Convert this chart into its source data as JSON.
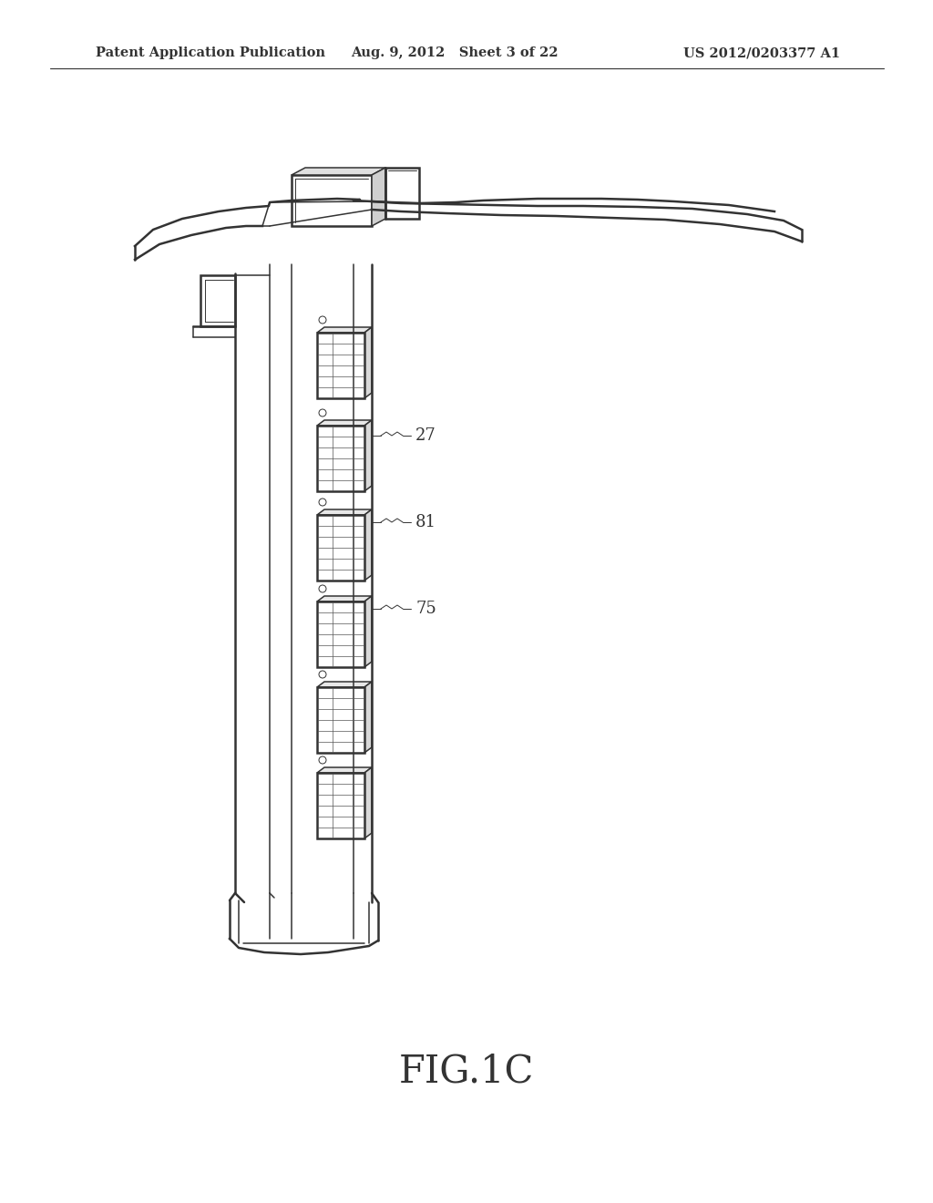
{
  "patent_header_left": "Patent Application Publication",
  "patent_header_mid": "Aug. 9, 2012   Sheet 3 of 22",
  "patent_header_right": "US 2012/0203377 A1",
  "bg_color": "#ffffff",
  "line_color": "#333333",
  "label_27": "27",
  "label_81": "81",
  "label_75": "75",
  "fig_label": "FIG.1C",
  "title_fontsize": 30,
  "header_fontsize": 11
}
